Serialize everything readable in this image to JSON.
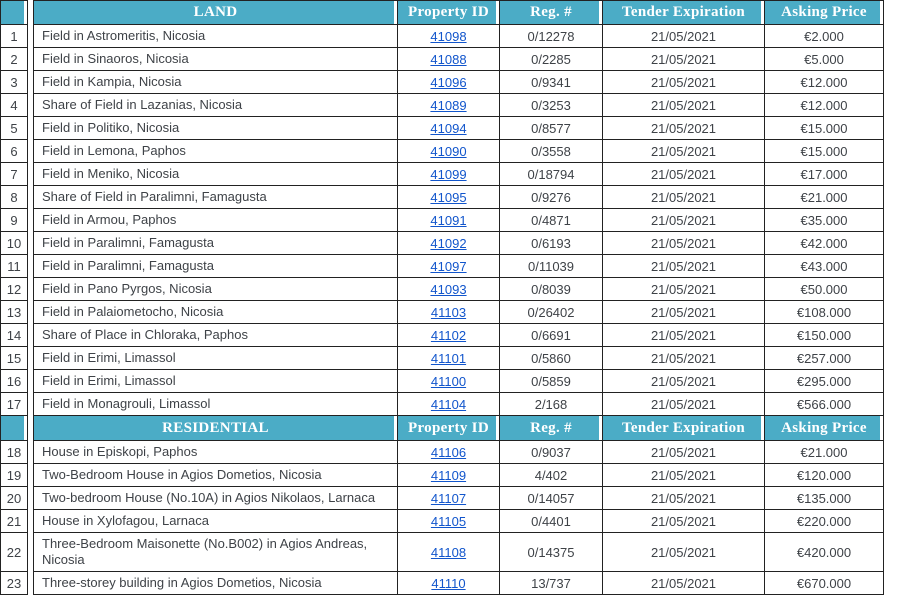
{
  "columns": {
    "property_id": "Property ID",
    "reg_number": "Reg. #",
    "tender_expiration": "Tender Expiration",
    "asking_price": "Asking Price"
  },
  "colors": {
    "header_bg": "#4bacc6",
    "header_text": "#ffffff",
    "link": "#1155cc",
    "body_text": "#3e4247",
    "border": "#222222"
  },
  "sections": [
    {
      "label": "LAND",
      "rows": [
        {
          "num": "1",
          "description": "Field in Astromeritis, Nicosia",
          "property_id": "41098",
          "reg_number": "0/12278",
          "tender_expiration": "21/05/2021",
          "asking_price": "€2.000"
        },
        {
          "num": "2",
          "description": "Field in Sinaoros, Nicosia",
          "property_id": "41088",
          "reg_number": "0/2285",
          "tender_expiration": "21/05/2021",
          "asking_price": "€5.000"
        },
        {
          "num": "3",
          "description": "Field in Kampia, Nicosia",
          "property_id": "41096",
          "reg_number": "0/9341",
          "tender_expiration": "21/05/2021",
          "asking_price": "€12.000"
        },
        {
          "num": "4",
          "description": "Share of Field in Lazanias, Nicosia",
          "property_id": "41089",
          "reg_number": "0/3253",
          "tender_expiration": "21/05/2021",
          "asking_price": "€12.000"
        },
        {
          "num": "5",
          "description": "Field in Politiko, Nicosia",
          "property_id": "41094",
          "reg_number": "0/8577",
          "tender_expiration": "21/05/2021",
          "asking_price": "€15.000"
        },
        {
          "num": "6",
          "description": "Field in Lemona, Paphos",
          "property_id": "41090",
          "reg_number": "0/3558",
          "tender_expiration": "21/05/2021",
          "asking_price": "€15.000"
        },
        {
          "num": "7",
          "description": "Field in Meniko, Nicosia",
          "property_id": "41099",
          "reg_number": "0/18794",
          "tender_expiration": "21/05/2021",
          "asking_price": "€17.000"
        },
        {
          "num": "8",
          "description": "Share of Field in Paralimni, Famagusta",
          "property_id": "41095",
          "reg_number": "0/9276",
          "tender_expiration": "21/05/2021",
          "asking_price": "€21.000"
        },
        {
          "num": "9",
          "description": "Field in Armou, Paphos",
          "property_id": "41091",
          "reg_number": "0/4871",
          "tender_expiration": "21/05/2021",
          "asking_price": "€35.000"
        },
        {
          "num": "10",
          "description": "Field in Paralimni, Famagusta",
          "property_id": "41092",
          "reg_number": "0/6193",
          "tender_expiration": "21/05/2021",
          "asking_price": "€42.000"
        },
        {
          "num": "11",
          "description": "Field in Paralimni, Famagusta",
          "property_id": "41097",
          "reg_number": "0/11039",
          "tender_expiration": "21/05/2021",
          "asking_price": "€43.000"
        },
        {
          "num": "12",
          "description": "Field in Pano Pyrgos, Nicosia",
          "property_id": "41093",
          "reg_number": "0/8039",
          "tender_expiration": "21/05/2021",
          "asking_price": "€50.000"
        },
        {
          "num": "13",
          "description": "Field in Palaiometocho, Nicosia",
          "property_id": "41103",
          "reg_number": "0/26402",
          "tender_expiration": "21/05/2021",
          "asking_price": "€108.000"
        },
        {
          "num": "14",
          "description": "Share of Place in Chloraka, Paphos",
          "property_id": "41102",
          "reg_number": "0/6691",
          "tender_expiration": "21/05/2021",
          "asking_price": "€150.000"
        },
        {
          "num": "15",
          "description": "Field in Erimi, Limassol",
          "property_id": "41101",
          "reg_number": "0/5860",
          "tender_expiration": "21/05/2021",
          "asking_price": "€257.000"
        },
        {
          "num": "16",
          "description": "Field in Erimi, Limassol",
          "property_id": "41100",
          "reg_number": "0/5859",
          "tender_expiration": "21/05/2021",
          "asking_price": "€295.000"
        },
        {
          "num": "17",
          "description": "Field in Monagrouli, Limassol",
          "property_id": "41104",
          "reg_number": "2/168",
          "tender_expiration": "21/05/2021",
          "asking_price": "€566.000"
        }
      ]
    },
    {
      "label": "RESIDENTIAL",
      "rows": [
        {
          "num": "18",
          "description": "House in Episkopi, Paphos",
          "property_id": "41106",
          "reg_number": "0/9037",
          "tender_expiration": "21/05/2021",
          "asking_price": "€21.000"
        },
        {
          "num": "19",
          "description": "Two-Bedroom House in Agios Dometios, Nicosia",
          "property_id": "41109",
          "reg_number": "4/402",
          "tender_expiration": "21/05/2021",
          "asking_price": "€120.000"
        },
        {
          "num": "20",
          "description": "Two-bedroom House (No.10A) in Agios Nikolaos, Larnaca",
          "property_id": "41107",
          "reg_number": "0/14057",
          "tender_expiration": "21/05/2021",
          "asking_price": "€135.000"
        },
        {
          "num": "21",
          "description": "House in Xylofagou, Larnaca",
          "property_id": "41105",
          "reg_number": "0/4401",
          "tender_expiration": "21/05/2021",
          "asking_price": "€220.000"
        },
        {
          "num": "22",
          "description": "Three-Bedroom Maisonette (No.B002) in Agios Andreas, Nicosia",
          "property_id": "41108",
          "reg_number": "0/14375",
          "tender_expiration": "21/05/2021",
          "asking_price": "€420.000"
        },
        {
          "num": "23",
          "description": "Three-storey building in Agios Dometios, Nicosia",
          "property_id": "41110",
          "reg_number": "13/737",
          "tender_expiration": "21/05/2021",
          "asking_price": "€670.000"
        }
      ]
    }
  ]
}
